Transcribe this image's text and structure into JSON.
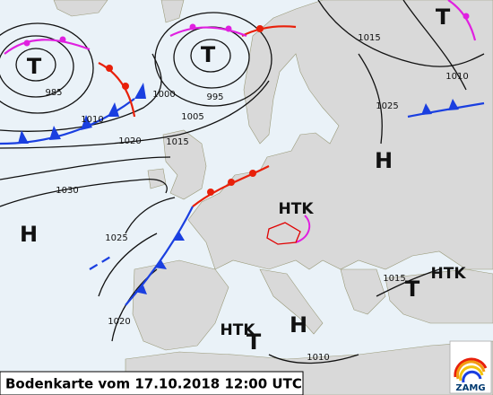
{
  "caption": "Bodenkarte vom 17.10.2018 12:00 UTC",
  "logo": "ZAMG",
  "pressure_centers": [
    {
      "label": "T"
    },
    {
      "label": "T"
    },
    {
      "label": "T"
    },
    {
      "label": "H"
    },
    {
      "label": "H"
    },
    {
      "label": "HTK"
    },
    {
      "label": "HTK"
    },
    {
      "label": "T"
    },
    {
      "label": "HTK"
    },
    {
      "label": "H"
    },
    {
      "label": "T"
    }
  ],
  "isobar_labels": [
    "985",
    "1010",
    "1020",
    "1030",
    "1025",
    "1020",
    "1000",
    "1005",
    "995",
    "1015",
    "1015",
    "1010",
    "1025",
    "1010",
    "1015"
  ]
}
